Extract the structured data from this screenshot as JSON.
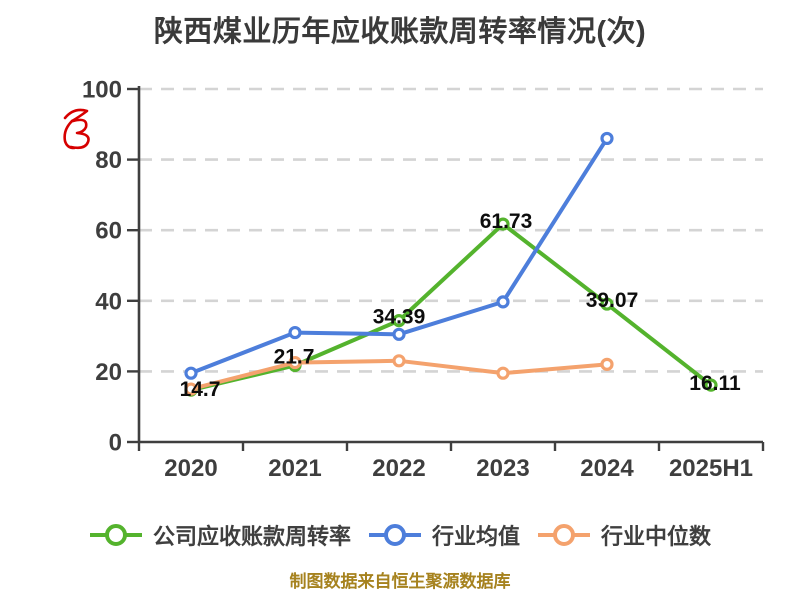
{
  "title": "陕西煤业历年应收账款周转率情况(次)",
  "footer": "制图数据来自恒生聚源数据库",
  "red_mark": {
    "name": "handwritten-red-unit-mark",
    "color": "#d60000"
  },
  "colors": {
    "company_green": "#54b32d",
    "industry_avg_blue": "#4d7edb",
    "industry_median_orange": "#f4a26d",
    "grid": "#d4d4d4",
    "axis": "#3f3f3f",
    "tick_text": "#3e3e3e",
    "data_label": "#0d0d0d",
    "footer_gold": "#a6821e"
  },
  "chart_data": {
    "type": "line",
    "title": "陕西煤业历年应收账款周转率情况(次)",
    "categories": [
      "2020",
      "2021",
      "2022",
      "2023",
      "2024",
      "2025H1"
    ],
    "series": [
      {
        "name": "公司应收账款周转率",
        "color": "#54b32d",
        "values": [
          14.7,
          21.7,
          34.39,
          61.73,
          39.07,
          16.11
        ],
        "point_labels": [
          "14.7",
          "21.7",
          "34.39",
          "61.73",
          "39.07",
          "16.11"
        ]
      },
      {
        "name": "行业均值",
        "color": "#4d7edb",
        "values": [
          19.5,
          31,
          30.5,
          39.7,
          86,
          null
        ],
        "point_labels": null
      },
      {
        "name": "行业中位数",
        "color": "#f4a26d",
        "values": [
          15,
          22.5,
          23,
          19.5,
          22,
          null
        ],
        "point_labels": null
      }
    ],
    "xlabel": "",
    "ylabel": "",
    "ylim": [
      0,
      100
    ],
    "y_ticks": [
      0,
      20,
      40,
      60,
      80,
      100
    ],
    "grid": "horizontal-dashed",
    "legend_position": "bottom",
    "marker": "circle-white-fill"
  }
}
